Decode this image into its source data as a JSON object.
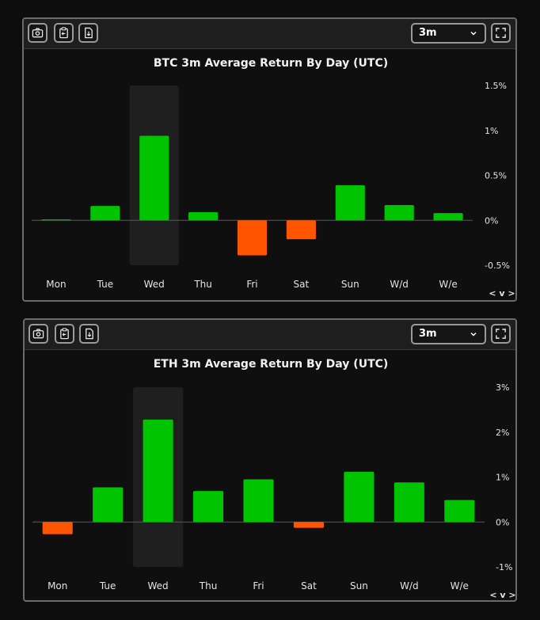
{
  "toolbar": {
    "camera_icon": "camera-icon",
    "clipboard_icon": "clipboard-icon",
    "download_icon": "file-download-icon",
    "fullscreen_icon": "fullscreen-icon",
    "chevron_icon": "chevron-down-icon"
  },
  "panels": [
    {
      "period_label": "3m",
      "nav_label": "< v >"
    },
    {
      "period_label": "3m",
      "nav_label": "< v >"
    }
  ],
  "colors": {
    "positive": "#00c400",
    "negative": "#ff5500",
    "highlight": "#1f1f1f",
    "background": "#0f0f0f"
  },
  "chart_data": [
    {
      "type": "bar",
      "title": "BTC 3m Average Return By Day (UTC)",
      "categories": [
        "Mon",
        "Tue",
        "Wed",
        "Thu",
        "Fri",
        "Sat",
        "Sun",
        "W/d",
        "W/e"
      ],
      "values": [
        0.01,
        0.16,
        0.94,
        0.09,
        -0.39,
        -0.21,
        0.39,
        0.17,
        0.08
      ],
      "unit": "%",
      "ylim": [
        -0.5,
        1.5
      ],
      "yticks": [
        "1.5%",
        "1%",
        "0.5%",
        "0%",
        "-0.5%"
      ],
      "ytick_values": [
        1.5,
        1.0,
        0.5,
        0.0,
        -0.5
      ],
      "highlighted_category": "Wed",
      "grid": false,
      "legend": "none"
    },
    {
      "type": "bar",
      "title": "ETH 3m Average Return By Day (UTC)",
      "categories": [
        "Mon",
        "Tue",
        "Wed",
        "Thu",
        "Fri",
        "Sat",
        "Sun",
        "W/d",
        "W/e"
      ],
      "values": [
        -0.27,
        0.77,
        2.28,
        0.69,
        0.95,
        -0.13,
        1.12,
        0.88,
        0.49
      ],
      "unit": "%",
      "ylim": [
        -1,
        3
      ],
      "yticks": [
        "3%",
        "2%",
        "1%",
        "0%",
        "-1%"
      ],
      "ytick_values": [
        3,
        2,
        1,
        0,
        -1
      ],
      "highlighted_category": "Wed",
      "grid": false,
      "legend": "none"
    }
  ]
}
